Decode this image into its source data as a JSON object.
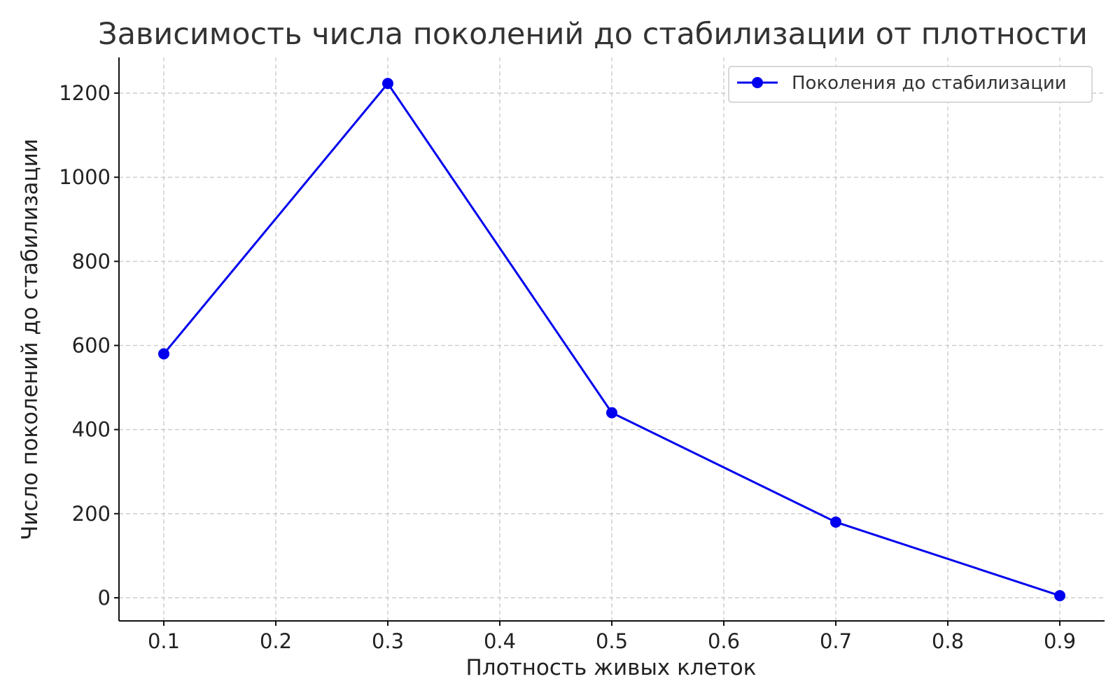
{
  "chart_data": {
    "type": "line",
    "title": "Зависимость числа поколений до стабилизации от плотности",
    "xlabel": "Плотность живых клеток",
    "ylabel": "Число поколений до стабилизации",
    "x": [
      0.1,
      0.3,
      0.5,
      0.7,
      0.9
    ],
    "series": [
      {
        "name": "Поколения до стабилизации",
        "values": [
          580,
          1223,
          440,
          180,
          5
        ],
        "color": "#0000ee",
        "marker": "circle"
      }
    ],
    "xticks": [
      "0.1",
      "0.2",
      "0.3",
      "0.4",
      "0.5",
      "0.6",
      "0.7",
      "0.8",
      "0.9"
    ],
    "yticks": [
      "0",
      "200",
      "400",
      "600",
      "800",
      "1000",
      "1200"
    ],
    "xlim": [
      0.06,
      0.94
    ],
    "ylim": [
      -55,
      1285
    ],
    "grid": true,
    "legend_position": "top-right"
  }
}
